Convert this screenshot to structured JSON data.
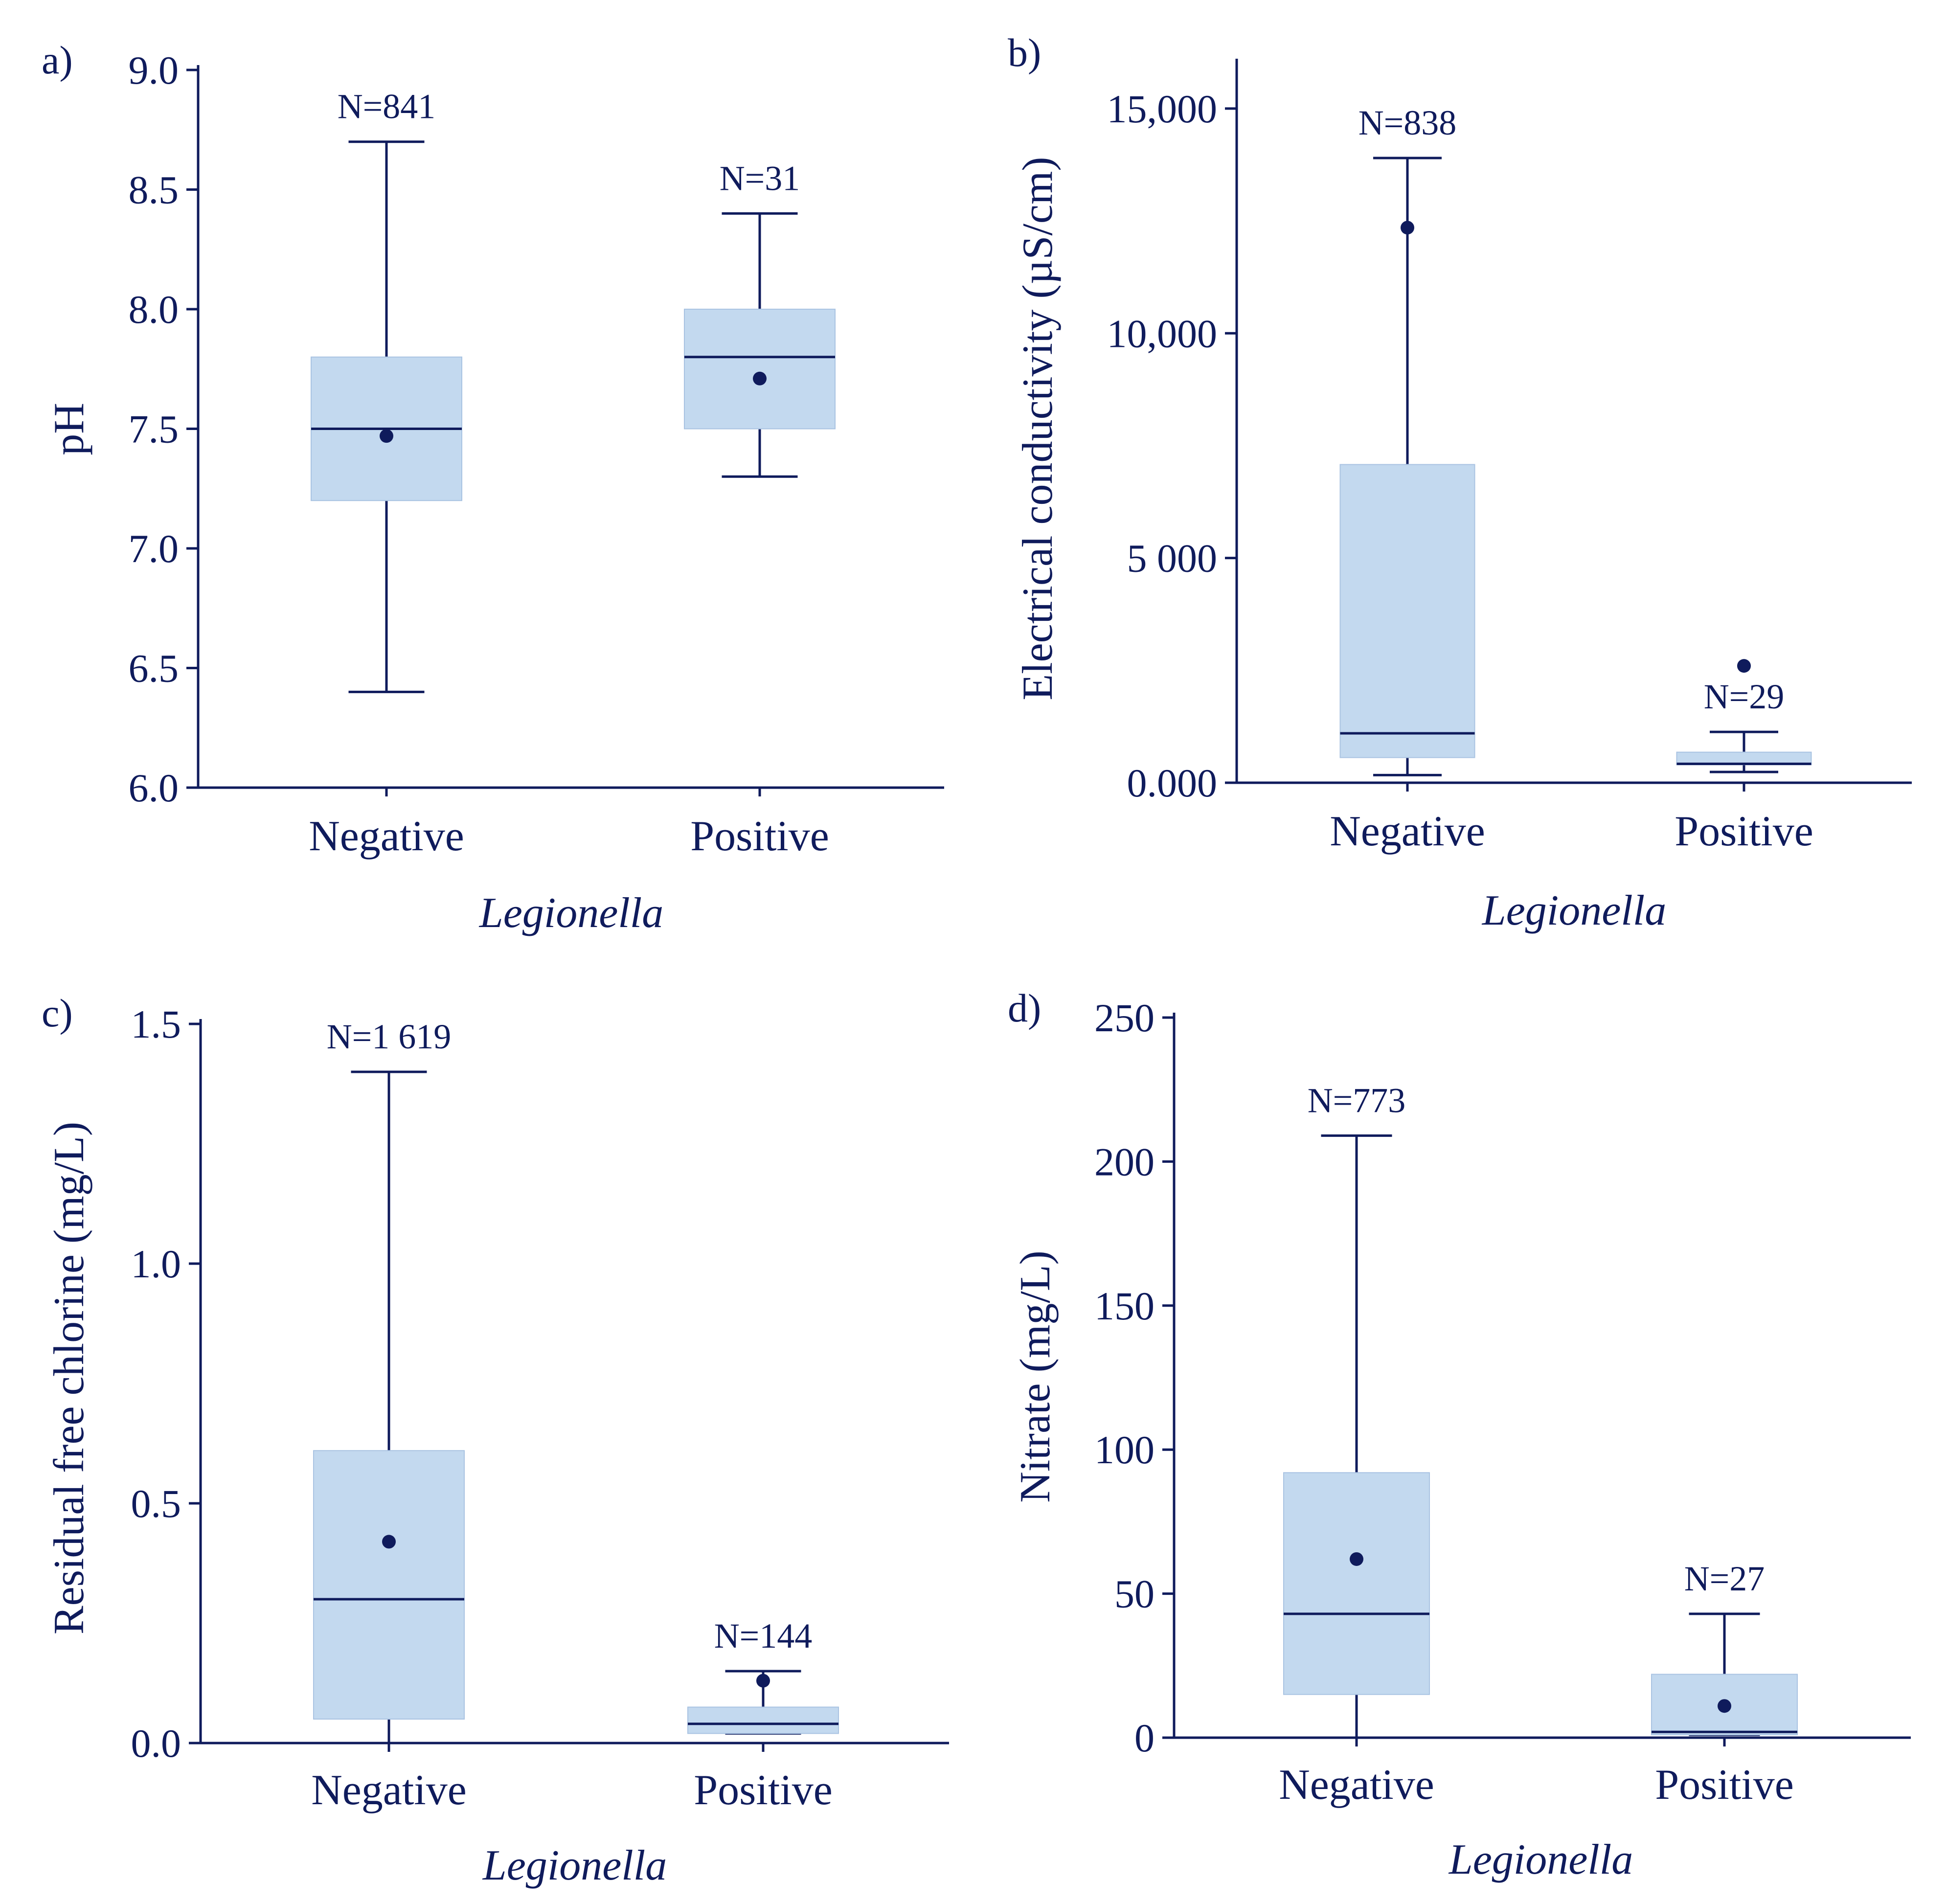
{
  "theme": {
    "ink": "#0f1b5c",
    "box_fill": "#c3d9ef",
    "box_edge": "#a9c3e2"
  },
  "chart_data": [
    {
      "type": "box",
      "panel_label": "a)",
      "ylabel": "pH",
      "xlabel": "Legionella",
      "categories": [
        "Negative",
        "Positive"
      ],
      "ylim": [
        6.0,
        9.0
      ],
      "yticks": [
        6.0,
        6.5,
        7.0,
        7.5,
        8.0,
        8.5,
        9.0
      ],
      "ytick_labels": [
        "6.0",
        "6.5",
        "7.0",
        "7.5",
        "8.0",
        "8.5",
        "9.0"
      ],
      "boxes": [
        {
          "name": "Negative",
          "n_label": "N=841",
          "whisker_low": 6.4,
          "q1": 7.2,
          "median": 7.5,
          "q3": 7.8,
          "whisker_high": 8.7,
          "mean": 7.47
        },
        {
          "name": "Positive",
          "n_label": "N=31",
          "whisker_low": 7.3,
          "q1": 7.5,
          "median": 7.8,
          "q3": 8.0,
          "whisker_high": 8.4,
          "mean": 7.71
        }
      ]
    },
    {
      "type": "box",
      "panel_label": "b)",
      "ylabel": "Electrical conductivity (µS/cm)",
      "xlabel": "Legionella",
      "categories": [
        "Negative",
        "Positive"
      ],
      "ylim": [
        0,
        16000
      ],
      "yticks": [
        0,
        5000,
        10000,
        15000
      ],
      "ytick_labels": [
        "0.000",
        "5 000",
        "10,000",
        "15,000"
      ],
      "boxes": [
        {
          "name": "Negative",
          "n_label": "N=838",
          "whisker_low": 170,
          "q1": 560,
          "median": 1100,
          "q3": 7080,
          "whisker_high": 13900,
          "mean": 12350
        },
        {
          "name": "Positive",
          "n_label": "N=29",
          "whisker_low": 240,
          "q1": 400,
          "median": 420,
          "q3": 680,
          "whisker_high": 1130,
          "mean": 2600
        }
      ]
    },
    {
      "type": "box",
      "panel_label": "c)",
      "ylabel": "Residual free chlorine (mg/L)",
      "xlabel": "Legionella",
      "categories": [
        "Negative",
        "Positive"
      ],
      "ylim": [
        0.0,
        1.5
      ],
      "yticks": [
        0.0,
        0.5,
        1.0,
        1.5
      ],
      "ytick_labels": [
        "0.0",
        "0.5",
        "1.0",
        "1.5"
      ],
      "boxes": [
        {
          "name": "Negative",
          "n_label": "N=1 619",
          "whisker_low": 0.0,
          "q1": 0.05,
          "median": 0.3,
          "q3": 0.61,
          "whisker_high": 1.4,
          "mean": 0.42
        },
        {
          "name": "Positive",
          "n_label": "N=144",
          "whisker_low": 0.02,
          "q1": 0.02,
          "median": 0.04,
          "q3": 0.075,
          "whisker_high": 0.15,
          "mean": 0.13
        }
      ]
    },
    {
      "type": "box",
      "panel_label": "d)",
      "ylabel": "Nitrate (mg/L)",
      "xlabel": "Legionella",
      "categories": [
        "Negative",
        "Positive"
      ],
      "ylim": [
        0,
        250
      ],
      "yticks": [
        0,
        50,
        100,
        150,
        200,
        250
      ],
      "ytick_labels": [
        "0",
        "50",
        "100",
        "150",
        "200",
        "250"
      ],
      "boxes": [
        {
          "name": "Negative",
          "n_label": "N=773",
          "whisker_low": 0,
          "q1": 15,
          "median": 43,
          "q3": 92,
          "whisker_high": 209,
          "mean": 62
        },
        {
          "name": "Positive",
          "n_label": "N=27",
          "whisker_low": 1,
          "q1": 1,
          "median": 2,
          "q3": 22,
          "whisker_high": 43,
          "mean": 11
        }
      ]
    }
  ]
}
